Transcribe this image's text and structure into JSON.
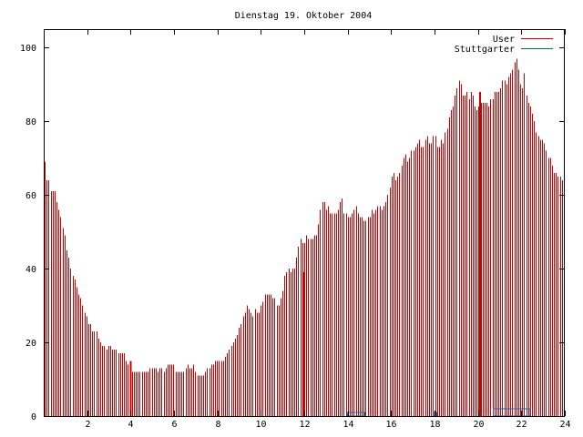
{
  "chart_data": {
    "type": "bar",
    "title": "Dienstag 19. Oktober 2004",
    "xlabel": "",
    "ylabel": "",
    "xlim": [
      0,
      24
    ],
    "ylim": [
      0,
      105
    ],
    "x_ticks": [
      2,
      4,
      6,
      8,
      10,
      12,
      14,
      16,
      18,
      20,
      22,
      24
    ],
    "y_ticks": [
      0,
      20,
      40,
      60,
      80,
      100
    ],
    "grid": false,
    "legend_position": "top-right",
    "series": [
      {
        "name": "User",
        "color": "#cc0000",
        "values": [
          69,
          64,
          64,
          61,
          61,
          61,
          58,
          56,
          54,
          51,
          49,
          45,
          43,
          40,
          38,
          37,
          35,
          33,
          32,
          30,
          28,
          27,
          25,
          25,
          23,
          23,
          23,
          21,
          20,
          19,
          19,
          18,
          19,
          19,
          18,
          18,
          18,
          17,
          17,
          17,
          17,
          15,
          14,
          13,
          12,
          12,
          12,
          12,
          12,
          12,
          12,
          12,
          12,
          13,
          13,
          13,
          13,
          12,
          13,
          13,
          12,
          13,
          14,
          14,
          14,
          14,
          12,
          12,
          12,
          12,
          12,
          13,
          14,
          13,
          13,
          14,
          12,
          11,
          11,
          11,
          11,
          12,
          13,
          13,
          14,
          14,
          15,
          15,
          15,
          15,
          15,
          16,
          17,
          18,
          19,
          20,
          21,
          22,
          24,
          25,
          27,
          28,
          30,
          29,
          28,
          27,
          29,
          28,
          28,
          30,
          31,
          33,
          33,
          33,
          33,
          32,
          32,
          30,
          30,
          32,
          34,
          38,
          39,
          40,
          39,
          40,
          40,
          43,
          46,
          48,
          47,
          47,
          49,
          48,
          48,
          48,
          49,
          49,
          52,
          56,
          58,
          58,
          56,
          57,
          55,
          55,
          55,
          55,
          56,
          58,
          59,
          55,
          55,
          54,
          54,
          55,
          56,
          57,
          55,
          54,
          54,
          53,
          53,
          54,
          54,
          56,
          55,
          56,
          57,
          57,
          56,
          57,
          58,
          60,
          62,
          65,
          66,
          64,
          65,
          66,
          68,
          70,
          71,
          69,
          70,
          72,
          72,
          73,
          74,
          75,
          73,
          73,
          75,
          76,
          74,
          74,
          76,
          76,
          73,
          73,
          75,
          74,
          77,
          78,
          81,
          83,
          84,
          87,
          89,
          91,
          90,
          87,
          87,
          88,
          86,
          88,
          87,
          84,
          83,
          84,
          85,
          85,
          85,
          85,
          84,
          86,
          86,
          88,
          88,
          88,
          89,
          91,
          91,
          90,
          92,
          93,
          94,
          96,
          97,
          94,
          90,
          89,
          93,
          87,
          85,
          84,
          82,
          80,
          77,
          76,
          75,
          75,
          74,
          72,
          70,
          70,
          68,
          66,
          66,
          65,
          65,
          64,
          62
        ],
        "spikes": [
          {
            "x": 4.0,
            "value": 15
          },
          {
            "x": 12.0,
            "value": 39
          },
          {
            "x": 20.1,
            "value": 88
          }
        ]
      },
      {
        "name": "Stuttgarter",
        "color": "#0066aa",
        "segments": [
          {
            "x_start": 14.0,
            "x_end": 14.8,
            "value": 1
          },
          {
            "x_start": 17.95,
            "x_end": 18.1,
            "value": 1
          },
          {
            "x_start": 20.7,
            "x_end": 22.4,
            "value": 2
          }
        ]
      }
    ]
  }
}
